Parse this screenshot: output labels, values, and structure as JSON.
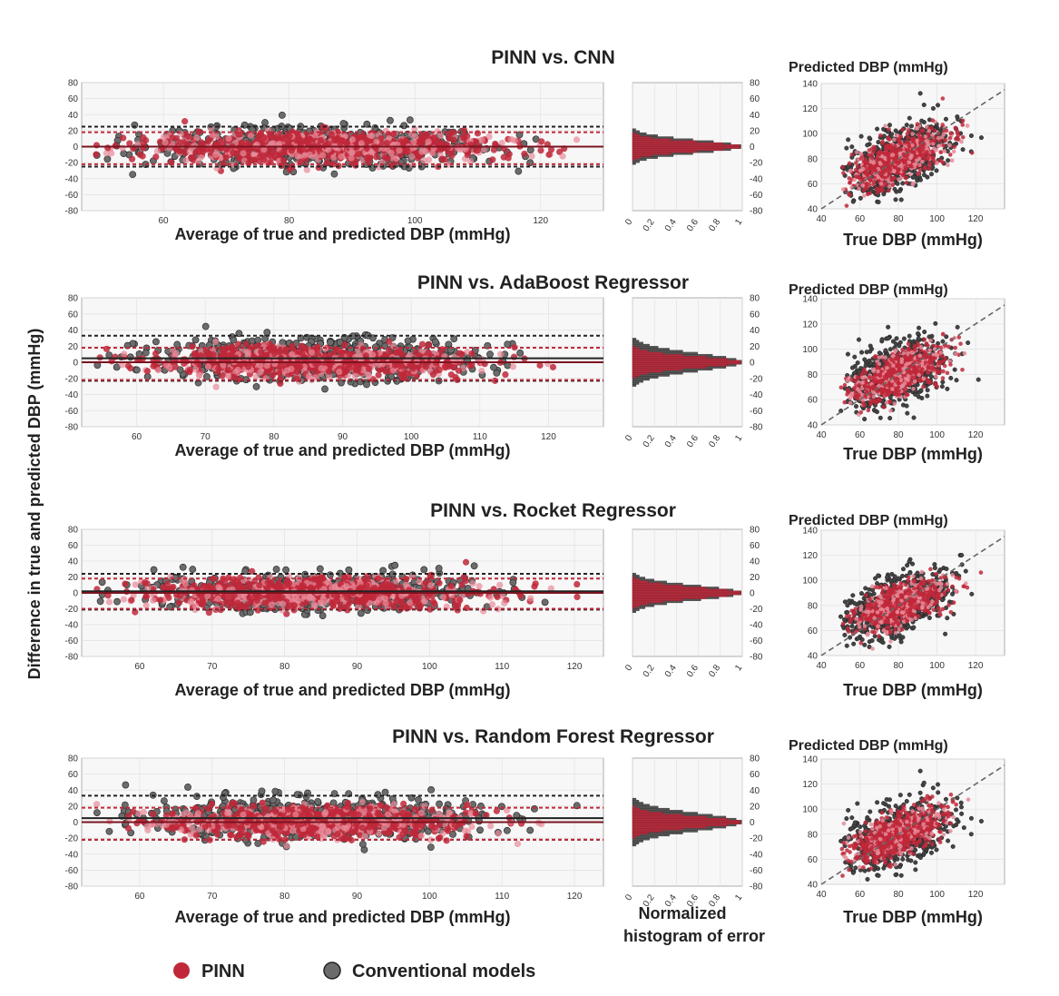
{
  "figure": {
    "ylabel": "Difference in true and predicted DBP (mmHg)",
    "histogram_label_line1": "Normalized",
    "histogram_label_line2": "histogram of error",
    "legend": [
      {
        "label": "PINN",
        "color": "#c0283a",
        "marker": "filled-circle"
      },
      {
        "label": "Conventional models",
        "color": "#6b6b6b",
        "marker": "outlined-circle"
      }
    ],
    "colors": {
      "pinn": "#c0283a",
      "pinn_light": "#e88a98",
      "conventional": "#6b6b6b",
      "conventional_edge": "#222222"
    }
  },
  "chart_data": [
    {
      "type": "scatter",
      "title": "PINN vs. CNN",
      "xlabel": "Average of true and predicted DBP (mmHg)",
      "xlim": [
        47,
        130
      ],
      "ylim": [
        -80,
        80
      ],
      "xticks": [
        60,
        80,
        100,
        120
      ],
      "yticks": [
        -80,
        -60,
        -40,
        -20,
        0,
        20,
        40,
        60,
        80
      ],
      "x_center": 85,
      "x_spread": 14,
      "pinn": {
        "mean": 0,
        "upper_loa": 18,
        "lower_loa": -22,
        "sd": 9
      },
      "conventional": {
        "mean": 0,
        "upper_loa": 25,
        "lower_loa": -25,
        "sd": 12
      },
      "histogram": {
        "xticks": [
          0,
          0.2,
          0.4,
          0.6,
          0.8,
          1
        ],
        "yticks": [
          -80,
          -60,
          -40,
          -20,
          0,
          20,
          40,
          60,
          80
        ],
        "pinn_sd": 6,
        "conventional_sd": 8
      },
      "scatter": {
        "xlabel": "True DBP (mmHg)",
        "ylabel": "Predicted DBP (mmHg)",
        "xlim": [
          40,
          135
        ],
        "ylim": [
          40,
          140
        ],
        "xticks": [
          40,
          60,
          80,
          100,
          120
        ],
        "yticks": [
          40,
          60,
          80,
          100,
          120,
          140
        ],
        "pinn_fit_slope": 0.6,
        "conventional_fit_slope": 0.55
      }
    },
    {
      "type": "scatter",
      "title": "PINN vs. AdaBoost Regressor",
      "xlabel": "Average of true and predicted DBP (mmHg)",
      "xlim": [
        52,
        128
      ],
      "ylim": [
        -80,
        80
      ],
      "xticks": [
        60,
        70,
        80,
        90,
        100,
        110,
        120
      ],
      "yticks": [
        -80,
        -60,
        -40,
        -20,
        0,
        20,
        40,
        60,
        80
      ],
      "x_center": 85,
      "x_spread": 12,
      "pinn": {
        "mean": 0,
        "upper_loa": 18,
        "lower_loa": -22,
        "sd": 9
      },
      "conventional": {
        "mean": 5,
        "upper_loa": 33,
        "lower_loa": -23,
        "sd": 13
      },
      "histogram": {
        "xticks": [
          0,
          0.2,
          0.4,
          0.6,
          0.8,
          1
        ],
        "yticks": [
          -80,
          -60,
          -40,
          -20,
          0,
          20,
          40,
          60,
          80
        ],
        "pinn_sd": 7,
        "conventional_sd": 11
      },
      "scatter": {
        "xlabel": "True DBP (mmHg)",
        "ylabel": "Predicted DBP (mmHg)",
        "xlim": [
          40,
          135
        ],
        "ylim": [
          40,
          140
        ],
        "xticks": [
          40,
          60,
          80,
          100,
          120
        ],
        "yticks": [
          40,
          60,
          80,
          100,
          120,
          140
        ],
        "pinn_fit_slope": 0.55,
        "conventional_fit_slope": 0.4
      }
    },
    {
      "type": "scatter",
      "title": "PINN vs. Rocket Regressor",
      "xlabel": "Average of true and predicted DBP (mmHg)",
      "xlim": [
        52,
        124
      ],
      "ylim": [
        -80,
        80
      ],
      "xticks": [
        60,
        70,
        80,
        90,
        100,
        110,
        120
      ],
      "yticks": [
        -80,
        -60,
        -40,
        -20,
        0,
        20,
        40,
        60,
        80
      ],
      "x_center": 84,
      "x_spread": 11,
      "pinn": {
        "mean": 0,
        "upper_loa": 18,
        "lower_loa": -20,
        "sd": 9
      },
      "conventional": {
        "mean": 2,
        "upper_loa": 24,
        "lower_loa": -21,
        "sd": 11
      },
      "histogram": {
        "xticks": [
          0,
          0.2,
          0.4,
          0.6,
          0.8,
          1
        ],
        "yticks": [
          -80,
          -60,
          -40,
          -20,
          0,
          20,
          40,
          60,
          80
        ],
        "pinn_sd": 7,
        "conventional_sd": 9
      },
      "scatter": {
        "xlabel": "True DBP (mmHg)",
        "ylabel": "Predicted DBP (mmHg)",
        "xlim": [
          40,
          135
        ],
        "ylim": [
          40,
          140
        ],
        "xticks": [
          40,
          60,
          80,
          100,
          120
        ],
        "yticks": [
          40,
          60,
          80,
          100,
          120,
          140
        ],
        "pinn_fit_slope": 0.55,
        "conventional_fit_slope": 0.5
      }
    },
    {
      "type": "scatter",
      "title": "PINN vs. Random Forest Regressor",
      "xlabel": "Average of true and predicted DBP (mmHg)",
      "xlim": [
        52,
        124
      ],
      "ylim": [
        -80,
        80
      ],
      "xticks": [
        60,
        70,
        80,
        90,
        100,
        110,
        120
      ],
      "yticks": [
        -80,
        -60,
        -40,
        -20,
        0,
        20,
        40,
        60,
        80
      ],
      "x_center": 84,
      "x_spread": 11,
      "pinn": {
        "mean": 0,
        "upper_loa": 18,
        "lower_loa": -22,
        "sd": 9
      },
      "conventional": {
        "mean": 5,
        "upper_loa": 33,
        "lower_loa": -22,
        "sd": 13
      },
      "histogram": {
        "xticks": [
          0,
          0.2,
          0.4,
          0.6,
          0.8,
          1
        ],
        "yticks": [
          -80,
          -60,
          -40,
          -20,
          0,
          20,
          40,
          60,
          80
        ],
        "pinn_sd": 7,
        "conventional_sd": 11
      },
      "scatter": {
        "xlabel": "True DBP (mmHg)",
        "ylabel": "Predicted DBP (mmHg)",
        "xlim": [
          40,
          135
        ],
        "ylim": [
          40,
          140
        ],
        "xticks": [
          40,
          60,
          80,
          100,
          120
        ],
        "yticks": [
          40,
          60,
          80,
          100,
          120,
          140
        ],
        "pinn_fit_slope": 0.6,
        "conventional_fit_slope": 0.4
      }
    }
  ]
}
